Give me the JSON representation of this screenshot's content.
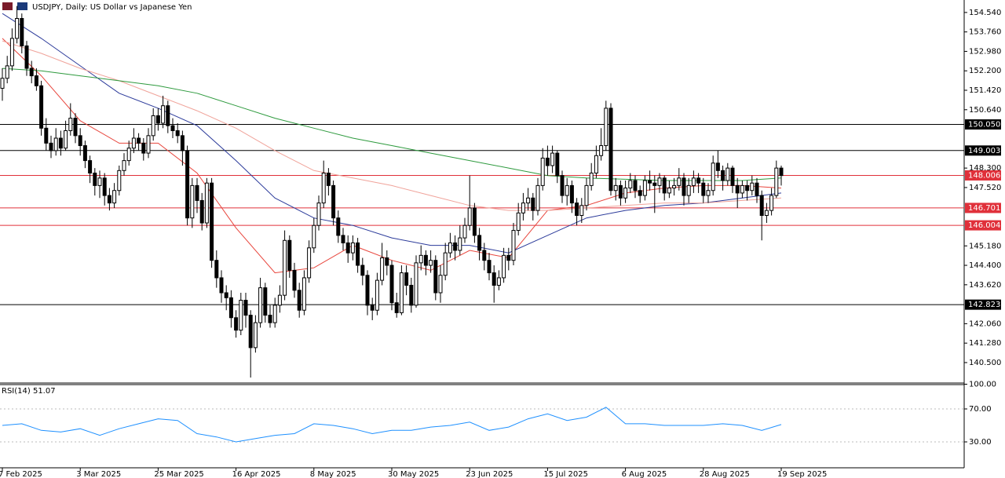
{
  "chart_data": {
    "type": "candlestick",
    "title": "USDJPY, Daily:  US Dollar vs Japanese Yen",
    "up_color": "#ffffff",
    "down_color": "#000000",
    "categories": [
      "7 Feb 2025",
      null,
      null,
      null,
      null,
      null,
      null,
      null,
      null,
      null,
      null,
      null,
      null,
      null,
      null,
      null,
      "3 Mar 2025",
      null,
      null,
      null,
      null,
      null,
      null,
      null,
      null,
      null,
      null,
      null,
      null,
      null,
      null,
      null,
      "25 Mar 2025",
      null,
      null,
      null,
      null,
      null,
      null,
      null,
      null,
      null,
      null,
      null,
      null,
      null,
      null,
      null,
      "16 Apr 2025",
      null,
      null,
      null,
      null,
      null,
      null,
      null,
      null,
      null,
      null,
      null,
      null,
      null,
      null,
      null,
      "8 May 2025",
      null,
      null,
      null,
      null,
      null,
      null,
      null,
      null,
      null,
      null,
      null,
      null,
      null,
      null,
      null,
      "30 May 2025",
      null,
      null,
      null,
      null,
      null,
      null,
      null,
      null,
      null,
      null,
      null,
      null,
      null,
      null,
      null,
      "23 Jun 2025",
      null,
      null,
      null,
      null,
      null,
      null,
      null,
      null,
      null,
      null,
      null,
      null,
      null,
      null,
      null,
      "15 Jul 2025",
      null,
      null,
      null,
      null,
      null,
      null,
      null,
      null,
      null,
      null,
      null,
      null,
      null,
      null,
      null,
      "6 Aug 2025",
      null,
      null,
      null,
      null,
      null,
      null,
      null,
      null,
      null,
      null,
      null,
      null,
      null,
      null,
      null,
      "28 Aug 2025",
      null,
      null,
      null,
      null,
      null,
      null,
      null,
      null,
      null,
      null,
      null,
      null,
      null,
      null,
      null,
      "19 Sep 2025"
    ],
    "ohlc": [
      [
        151.5,
        152.3,
        151.0,
        151.9
      ],
      [
        151.9,
        152.8,
        151.7,
        152.4
      ],
      [
        152.4,
        153.9,
        152.2,
        153.5
      ],
      [
        153.5,
        154.8,
        153.3,
        154.3
      ],
      [
        154.3,
        154.5,
        152.9,
        153.2
      ],
      [
        153.2,
        153.4,
        152.0,
        152.3
      ],
      [
        152.3,
        152.6,
        151.7,
        152.0
      ],
      [
        152.0,
        152.3,
        151.4,
        151.6
      ],
      [
        151.6,
        151.8,
        149.6,
        149.9
      ],
      [
        149.9,
        150.3,
        149.0,
        149.3
      ],
      [
        149.3,
        149.6,
        148.7,
        149.0
      ],
      [
        149.0,
        149.9,
        148.8,
        149.5
      ],
      [
        149.5,
        149.8,
        148.8,
        149.1
      ],
      [
        149.1,
        150.2,
        149.0,
        149.8
      ],
      [
        149.8,
        150.9,
        149.6,
        150.3
      ],
      [
        150.3,
        150.5,
        149.3,
        149.6
      ],
      [
        149.6,
        149.9,
        148.8,
        149.2
      ],
      [
        149.2,
        149.4,
        148.3,
        148.6
      ],
      [
        148.6,
        148.8,
        147.7,
        148.1
      ],
      [
        148.1,
        148.3,
        147.2,
        147.6
      ],
      [
        147.6,
        148.2,
        147.1,
        147.9
      ],
      [
        147.9,
        148.1,
        146.8,
        147.2
      ],
      [
        147.2,
        147.5,
        146.6,
        146.9
      ],
      [
        146.9,
        147.7,
        146.7,
        147.4
      ],
      [
        147.4,
        148.4,
        147.2,
        148.2
      ],
      [
        148.2,
        148.9,
        148.0,
        148.6
      ],
      [
        148.6,
        149.4,
        148.4,
        149.1
      ],
      [
        149.1,
        149.9,
        148.9,
        149.5
      ],
      [
        149.5,
        149.7,
        149.0,
        149.3
      ],
      [
        149.3,
        149.5,
        148.6,
        148.9
      ],
      [
        148.9,
        149.9,
        148.7,
        149.6
      ],
      [
        149.6,
        150.7,
        149.4,
        150.4
      ],
      [
        150.4,
        150.7,
        149.8,
        150.1
      ],
      [
        150.1,
        151.2,
        149.9,
        150.8
      ],
      [
        150.8,
        151.0,
        149.7,
        150.0
      ],
      [
        150.0,
        150.3,
        149.5,
        149.8
      ],
      [
        149.8,
        150.1,
        149.3,
        149.6
      ],
      [
        149.6,
        149.8,
        148.4,
        149.0
      ],
      [
        149.0,
        149.2,
        146.0,
        146.3
      ],
      [
        146.3,
        147.9,
        145.9,
        147.6
      ],
      [
        147.6,
        147.9,
        146.5,
        147.0
      ],
      [
        147.0,
        147.3,
        145.8,
        146.1
      ],
      [
        146.1,
        147.9,
        145.9,
        147.7
      ],
      [
        147.7,
        147.9,
        144.3,
        144.6
      ],
      [
        144.6,
        145.0,
        143.5,
        143.9
      ],
      [
        143.9,
        144.2,
        142.9,
        143.3
      ],
      [
        143.3,
        143.6,
        142.6,
        143.1
      ],
      [
        143.1,
        143.4,
        141.9,
        142.3
      ],
      [
        142.3,
        142.6,
        141.5,
        141.8
      ],
      [
        141.8,
        143.3,
        141.6,
        143.0
      ],
      [
        143.0,
        143.3,
        141.9,
        142.4
      ],
      [
        142.4,
        142.6,
        139.9,
        141.1
      ],
      [
        141.1,
        142.4,
        140.9,
        142.1
      ],
      [
        142.1,
        143.9,
        141.9,
        143.5
      ],
      [
        143.5,
        143.7,
        142.1,
        142.4
      ],
      [
        142.4,
        142.8,
        141.9,
        142.1
      ],
      [
        142.1,
        143.1,
        141.9,
        142.8
      ],
      [
        142.8,
        143.6,
        142.5,
        143.2
      ],
      [
        143.2,
        145.8,
        143.0,
        145.4
      ],
      [
        145.4,
        145.6,
        143.9,
        144.2
      ],
      [
        144.2,
        144.5,
        143.1,
        143.4
      ],
      [
        143.4,
        143.7,
        142.3,
        142.6
      ],
      [
        142.6,
        144.2,
        142.4,
        143.9
      ],
      [
        143.9,
        145.4,
        143.7,
        145.1
      ],
      [
        145.1,
        146.3,
        144.9,
        146.0
      ],
      [
        146.0,
        147.2,
        145.8,
        146.9
      ],
      [
        146.9,
        148.6,
        146.7,
        148.1
      ],
      [
        148.1,
        148.3,
        147.2,
        147.6
      ],
      [
        147.6,
        147.8,
        146.0,
        146.3
      ],
      [
        146.3,
        146.6,
        145.3,
        145.6
      ],
      [
        145.6,
        145.9,
        145.0,
        145.3
      ],
      [
        145.3,
        145.6,
        144.5,
        144.9
      ],
      [
        144.9,
        145.6,
        144.6,
        145.3
      ],
      [
        145.3,
        145.5,
        144.1,
        144.4
      ],
      [
        144.4,
        144.7,
        143.6,
        144.0
      ],
      [
        144.0,
        144.2,
        142.4,
        142.8
      ],
      [
        142.8,
        143.1,
        142.2,
        142.6
      ],
      [
        142.6,
        144.1,
        142.4,
        143.8
      ],
      [
        143.8,
        145.3,
        143.6,
        144.7
      ],
      [
        144.7,
        145.0,
        144.0,
        144.4
      ],
      [
        144.4,
        144.6,
        142.6,
        142.9
      ],
      [
        142.9,
        143.3,
        142.3,
        142.5
      ],
      [
        142.5,
        144.4,
        142.4,
        144.1
      ],
      [
        144.1,
        144.4,
        143.2,
        143.6
      ],
      [
        143.6,
        143.9,
        142.5,
        142.8
      ],
      [
        142.8,
        144.8,
        142.7,
        144.5
      ],
      [
        144.5,
        145.2,
        144.2,
        144.8
      ],
      [
        144.8,
        145.0,
        144.0,
        144.4
      ],
      [
        144.4,
        145.0,
        144.1,
        144.6
      ],
      [
        144.6,
        144.8,
        143.0,
        143.3
      ],
      [
        143.3,
        144.4,
        142.9,
        144.0
      ],
      [
        144.0,
        145.3,
        143.8,
        144.9
      ],
      [
        144.9,
        145.7,
        144.7,
        145.3
      ],
      [
        145.3,
        145.6,
        144.6,
        145.0
      ],
      [
        145.0,
        146.0,
        144.8,
        145.5
      ],
      [
        145.5,
        146.3,
        145.3,
        146.0
      ],
      [
        146.0,
        148.0,
        145.8,
        146.7
      ],
      [
        146.7,
        146.9,
        145.3,
        145.6
      ],
      [
        145.6,
        145.9,
        144.6,
        145.0
      ],
      [
        145.0,
        145.3,
        144.2,
        144.6
      ],
      [
        144.6,
        144.9,
        143.8,
        144.1
      ],
      [
        144.1,
        144.4,
        142.9,
        143.6
      ],
      [
        143.6,
        144.2,
        143.4,
        143.9
      ],
      [
        143.9,
        145.1,
        143.7,
        144.8
      ],
      [
        144.8,
        145.1,
        144.2,
        144.6
      ],
      [
        144.6,
        146.1,
        144.4,
        145.8
      ],
      [
        145.8,
        146.9,
        145.6,
        146.5
      ],
      [
        146.5,
        147.3,
        146.2,
        146.9
      ],
      [
        146.9,
        147.5,
        146.6,
        147.1
      ],
      [
        147.1,
        147.3,
        146.2,
        146.6
      ],
      [
        146.6,
        147.9,
        146.4,
        147.6
      ],
      [
        147.6,
        149.1,
        147.4,
        148.7
      ],
      [
        148.7,
        149.2,
        148.0,
        148.4
      ],
      [
        148.4,
        149.2,
        148.1,
        148.9
      ],
      [
        148.9,
        149.0,
        147.7,
        148.0
      ],
      [
        148.0,
        148.2,
        146.9,
        147.2
      ],
      [
        147.2,
        147.9,
        146.8,
        147.6
      ],
      [
        147.6,
        147.8,
        146.5,
        146.9
      ],
      [
        146.9,
        147.1,
        146.0,
        146.4
      ],
      [
        146.4,
        147.1,
        146.1,
        146.8
      ],
      [
        146.8,
        147.9,
        146.6,
        147.6
      ],
      [
        147.6,
        148.5,
        147.4,
        148.1
      ],
      [
        148.1,
        149.2,
        147.9,
        148.8
      ],
      [
        148.8,
        149.9,
        148.6,
        149.2
      ],
      [
        149.2,
        151.0,
        149.0,
        150.7
      ],
      [
        150.7,
        150.9,
        147.2,
        147.4
      ],
      [
        147.4,
        147.9,
        147.0,
        147.6
      ],
      [
        147.6,
        147.8,
        146.8,
        147.1
      ],
      [
        147.1,
        147.8,
        146.9,
        147.5
      ],
      [
        147.5,
        148.1,
        147.3,
        147.8
      ],
      [
        147.8,
        148.0,
        147.1,
        147.4
      ],
      [
        147.4,
        147.6,
        146.9,
        147.2
      ],
      [
        147.2,
        148.0,
        147.0,
        147.8
      ],
      [
        147.8,
        148.2,
        147.4,
        147.7
      ],
      [
        147.7,
        148.0,
        146.5,
        147.6
      ],
      [
        147.6,
        148.1,
        147.3,
        147.9
      ],
      [
        147.9,
        148.0,
        147.0,
        147.3
      ],
      [
        147.3,
        147.8,
        147.1,
        147.5
      ],
      [
        147.5,
        147.9,
        147.2,
        147.6
      ],
      [
        147.6,
        148.3,
        147.4,
        147.9
      ],
      [
        147.9,
        148.1,
        146.8,
        147.2
      ],
      [
        147.2,
        147.9,
        146.9,
        147.6
      ],
      [
        147.6,
        148.2,
        147.3,
        147.9
      ],
      [
        147.9,
        148.1,
        147.3,
        147.7
      ],
      [
        147.7,
        147.9,
        146.9,
        147.2
      ],
      [
        147.2,
        147.7,
        146.9,
        147.4
      ],
      [
        147.4,
        148.8,
        147.2,
        148.5
      ],
      [
        148.5,
        149.0,
        147.9,
        148.2
      ],
      [
        148.2,
        148.4,
        147.4,
        147.8
      ],
      [
        147.8,
        148.5,
        147.6,
        148.3
      ],
      [
        148.3,
        148.4,
        147.3,
        147.6
      ],
      [
        147.6,
        147.9,
        146.7,
        147.3
      ],
      [
        147.3,
        147.8,
        147.1,
        147.6
      ],
      [
        147.6,
        147.8,
        147.0,
        147.4
      ],
      [
        147.4,
        148.0,
        147.2,
        147.7
      ],
      [
        147.7,
        147.9,
        146.9,
        147.2
      ],
      [
        147.2,
        147.4,
        145.4,
        146.4
      ],
      [
        146.4,
        146.9,
        146.1,
        146.6
      ],
      [
        146.6,
        147.5,
        146.4,
        147.2
      ],
      [
        147.2,
        148.6,
        147.1,
        148.3
      ],
      [
        148.3,
        148.4,
        147.6,
        148.0
      ]
    ],
    "ylim": [
      139.68,
      155.04
    ],
    "yticks": [
      {
        "value": 154.54,
        "label": "154.540"
      },
      {
        "value": 153.76,
        "label": "153.760"
      },
      {
        "value": 152.98,
        "label": "152.980"
      },
      {
        "value": 152.2,
        "label": "152.200"
      },
      {
        "value": 151.42,
        "label": "151.420"
      },
      {
        "value": 150.64,
        "label": "150.640"
      },
      {
        "value": 148.3,
        "label": "148.300"
      },
      {
        "value": 147.52,
        "label": "147.520"
      },
      {
        "value": 145.18,
        "label": "145.180"
      },
      {
        "value": 144.4,
        "label": "144.400"
      },
      {
        "value": 143.62,
        "label": "143.620"
      },
      {
        "value": 142.06,
        "label": "142.060"
      },
      {
        "value": 141.28,
        "label": "141.280"
      },
      {
        "value": 140.5,
        "label": "140.500"
      }
    ],
    "levels": [
      {
        "value": 150.05,
        "label": "150.050",
        "color": "#000000"
      },
      {
        "value": 149.003,
        "label": "149.003",
        "color": "#000000"
      },
      {
        "value": 148.006,
        "label": "148.006",
        "color": "#e0303a"
      },
      {
        "value": 146.701,
        "label": "146.701",
        "color": "#e0303a"
      },
      {
        "value": 146.004,
        "label": "146.004",
        "color": "#e0303a"
      },
      {
        "value": 142.823,
        "label": "142.823",
        "color": "#000000"
      }
    ],
    "overlay_x": [
      0,
      8,
      16,
      24,
      32,
      40,
      48,
      56,
      64,
      72,
      80,
      88,
      96,
      104,
      112,
      120,
      128,
      136,
      144,
      152,
      160
    ],
    "overlays": [
      {
        "color": "#e8453c",
        "values": [
          153.5,
          152.0,
          150.2,
          149.3,
          149.3,
          148.1,
          145.9,
          144.1,
          144.3,
          145.2,
          144.6,
          144.2,
          145.0,
          144.7,
          146.6,
          146.8,
          147.3,
          147.5,
          147.6,
          147.6,
          147.5
        ]
      },
      {
        "color": "#2b3a9a",
        "values": [
          154.5,
          153.5,
          152.4,
          151.3,
          150.7,
          150.0,
          148.6,
          147.1,
          146.3,
          146.0,
          145.5,
          145.2,
          145.2,
          144.9,
          145.6,
          146.3,
          146.6,
          146.8,
          146.9,
          147.1,
          147.3
        ]
      },
      {
        "color": "#f0a39a",
        "values": [
          153.4,
          152.9,
          152.3,
          151.8,
          151.2,
          150.6,
          149.9,
          149.0,
          148.2,
          147.9,
          147.6,
          147.2,
          146.8,
          146.6,
          146.6,
          146.7,
          146.8,
          146.9,
          146.9,
          147.0,
          147.1
        ]
      },
      {
        "color": "#2e9a3e",
        "values": [
          152.3,
          152.2,
          152.0,
          151.8,
          151.6,
          151.3,
          150.8,
          150.3,
          149.9,
          149.5,
          149.2,
          148.9,
          148.6,
          148.3,
          148.0,
          147.9,
          147.85,
          147.8,
          147.8,
          147.8,
          147.9
        ]
      }
    ],
    "rsi": {
      "label": "RSI(14) 51.07",
      "color": "#1e90ff",
      "x": [
        0,
        4,
        8,
        12,
        16,
        20,
        24,
        28,
        32,
        36,
        40,
        44,
        48,
        52,
        56,
        60,
        64,
        68,
        72,
        76,
        80,
        84,
        88,
        92,
        96,
        100,
        104,
        108,
        112,
        116,
        120,
        124,
        128,
        132,
        136,
        140,
        144,
        148,
        152,
        156,
        160
      ],
      "values": [
        50,
        52,
        44,
        42,
        46,
        38,
        46,
        52,
        58,
        56,
        40,
        36,
        30,
        34,
        38,
        40,
        52,
        50,
        46,
        40,
        44,
        44,
        48,
        50,
        54,
        44,
        48,
        58,
        64,
        56,
        60,
        72,
        52,
        52,
        50,
        50,
        50,
        52,
        50,
        44,
        51.07
      ],
      "ylim": [
        0,
        100
      ],
      "yticks": [
        {
          "value": 100,
          "label": "100.00"
        },
        {
          "value": 70,
          "label": "70.00"
        },
        {
          "value": 30,
          "label": "30.00"
        }
      ]
    }
  }
}
